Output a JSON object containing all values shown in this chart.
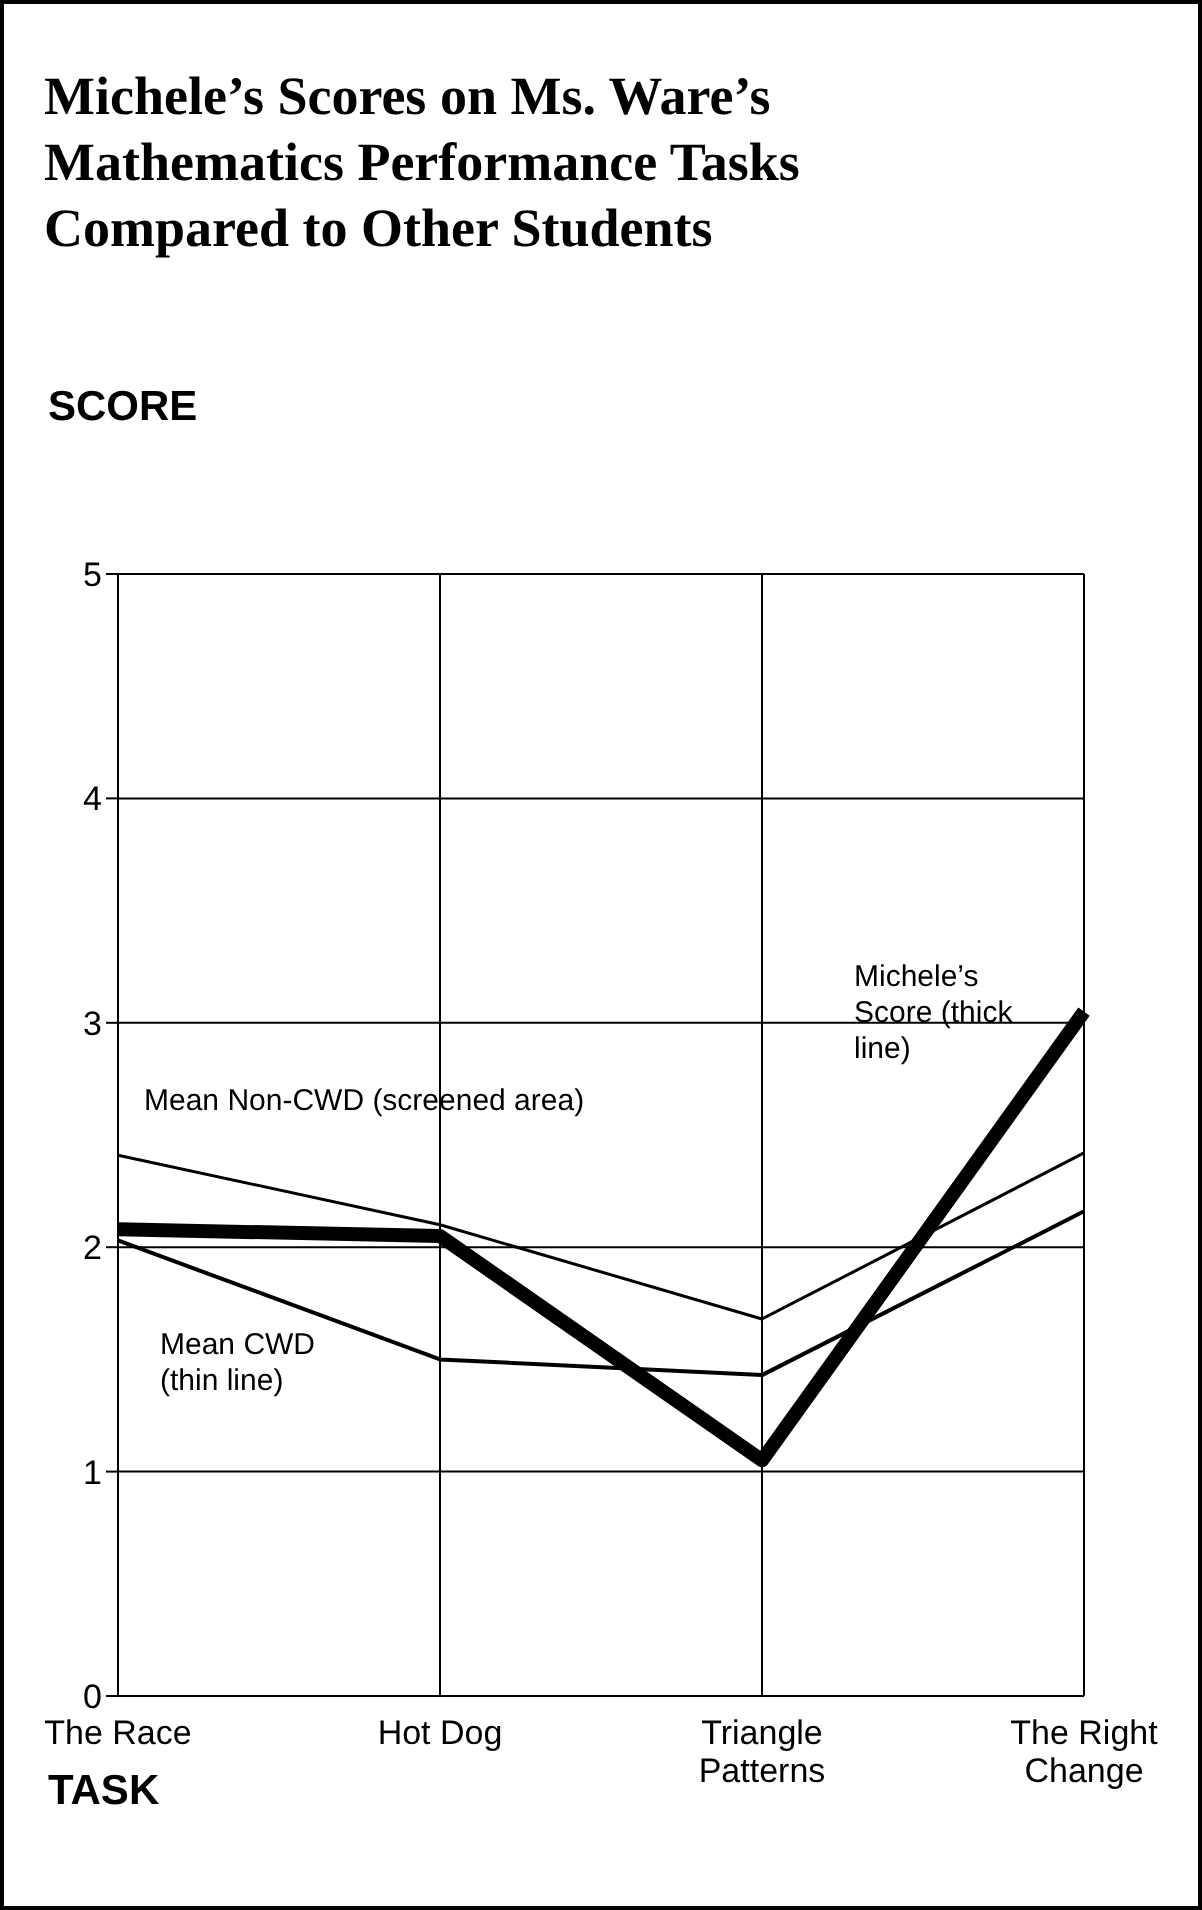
{
  "chart_data": {
    "type": "line",
    "title": "Michele’s Scores on Ms. Ware’s Mathematics Performance Tasks Compared to Other Students",
    "xlabel": "TASK",
    "ylabel": "SCORE",
    "categories": [
      "The Race",
      "Hot Dog",
      "Triangle Patterns",
      "The Right Change"
    ],
    "series": [
      {
        "name": "Mean Non-CWD (screened area)",
        "color": "#000000",
        "values": [
          2.41,
          2.1,
          1.68,
          2.42
        ]
      },
      {
        "name": "Mean CWD (thin line)",
        "color": "#000000",
        "values": [
          2.03,
          1.5,
          1.43,
          2.16
        ]
      },
      {
        "name": "Michele’s Score (thick line)",
        "color": "#000000",
        "values": [
          2.08,
          2.05,
          1.05,
          3.05
        ]
      }
    ],
    "ylim": [
      0,
      5
    ],
    "yticks": [
      0,
      1,
      2,
      3,
      4,
      5
    ],
    "grid": true,
    "legend": false,
    "marker": "none",
    "line_style": "solid"
  }
}
